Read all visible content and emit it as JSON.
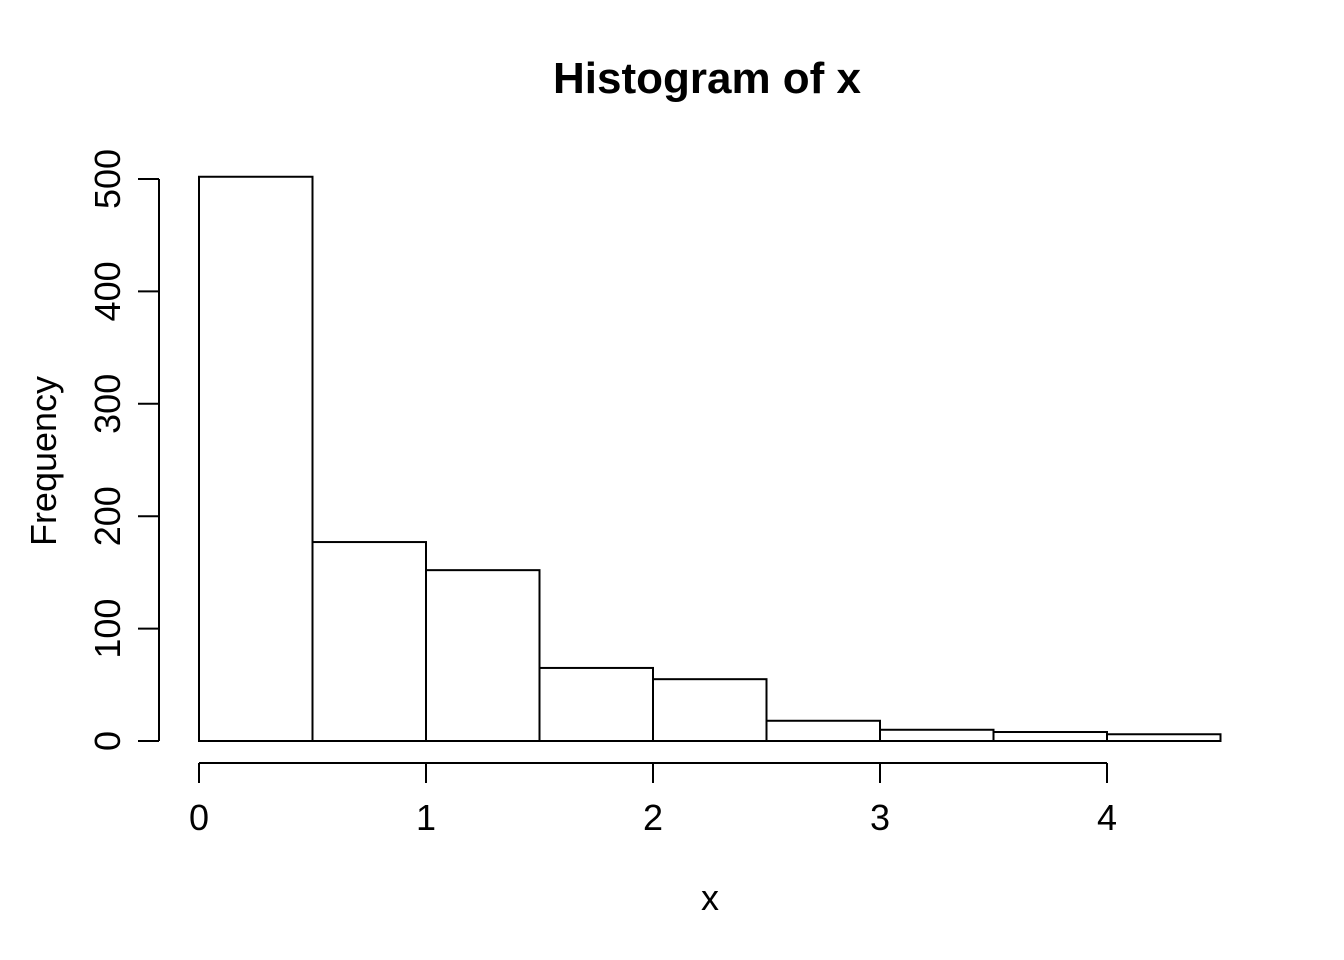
{
  "chart_data": {
    "type": "bar",
    "subtype": "histogram",
    "title": "Histogram of x",
    "xlabel": "x",
    "ylabel": "Frequency",
    "breaks": [
      0,
      0.5,
      1,
      1.5,
      2,
      2.5,
      3,
      3.5,
      4,
      4.5
    ],
    "counts": [
      502,
      177,
      152,
      65,
      55,
      18,
      10,
      8,
      6
    ],
    "x_ticks": [
      0,
      1,
      2,
      3,
      4
    ],
    "y_ticks": [
      0,
      100,
      200,
      300,
      400,
      500
    ],
    "xlim": [
      0,
      4.5
    ],
    "ylim": [
      0,
      500
    ],
    "grid": "off",
    "legend": "none",
    "bar_fill": "#ffffff",
    "bar_stroke": "#000000",
    "axis_color": "#000000",
    "background": "#ffffff"
  }
}
